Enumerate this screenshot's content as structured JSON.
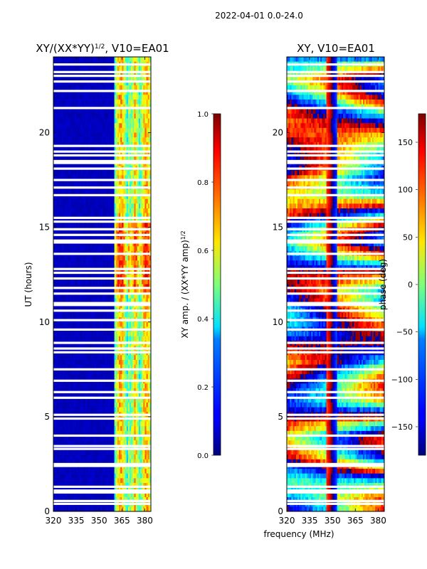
{
  "suptitle": "2022-04-01 0.0-24.0",
  "shared_xlabel": "frequency (MHz)",
  "chart_data": [
    {
      "type": "heatmap",
      "title": "XY/(XX*YY)",
      "title_exponent": "1/2",
      "title_suffix": ", V10=EA01",
      "xlabel": "",
      "ylabel": "UT (hours)",
      "xlim": [
        320,
        384
      ],
      "ylim": [
        0,
        24
      ],
      "xticks": [
        320,
        335,
        350,
        365,
        380
      ],
      "yticks": [
        0,
        5,
        10,
        15,
        20
      ],
      "colorbar": {
        "label": "XY amp. / (XX*YY amp)",
        "label_exponent": "1/2",
        "range": [
          0.0,
          1.0
        ],
        "ticks": [
          "0.0",
          "0.2",
          "0.4",
          "0.6",
          "0.8",
          "1.0"
        ],
        "tick_values": [
          0.0,
          0.2,
          0.4,
          0.6,
          0.8,
          1.0
        ]
      },
      "colormap": "jet",
      "description_of_values": "mostly ~0.05 below 360 MHz; 0.3-0.8 in channels 360-384 MHz"
    },
    {
      "type": "heatmap",
      "title": "XY, V10=EA01",
      "xlabel": "frequency (MHz)",
      "ylabel": "",
      "xlim": [
        320,
        384
      ],
      "ylim": [
        0,
        24
      ],
      "xticks": [
        320,
        335,
        350,
        365,
        380
      ],
      "yticks": [
        0,
        5,
        10,
        15,
        20
      ],
      "colorbar": {
        "label": "phase (deg)",
        "range": [
          -180,
          180
        ],
        "ticks": [
          "150",
          "100",
          "50",
          "0",
          "−50",
          "−100",
          "−150"
        ],
        "tick_values": [
          150,
          100,
          50,
          0,
          -50,
          -100,
          -150
        ]
      },
      "colormap": "jet",
      "description_of_values": "phase wraps across band; vertical stripe near 347-352 MHz"
    }
  ],
  "flagged_gaps_hours": [
    0.4,
    0.55,
    1.0,
    1.1,
    1.3,
    2.4,
    2.5,
    3.3,
    3.45,
    4.0,
    4.9,
    5.1,
    6.0,
    6.3,
    6.9,
    7.5,
    8.4,
    8.6,
    8.9,
    9.6,
    10.1,
    10.6,
    10.9,
    11.0,
    11.5,
    11.8,
    12.3,
    12.6,
    12.8,
    13.6,
    14.2,
    14.3,
    14.6,
    14.9,
    15.3,
    15.5,
    16.7,
    17.1,
    17.5,
    18.1,
    18.4,
    18.5,
    18.8,
    19.0,
    19.3,
    21.3,
    22.2,
    22.7,
    23.0,
    23.2,
    23.6
  ]
}
